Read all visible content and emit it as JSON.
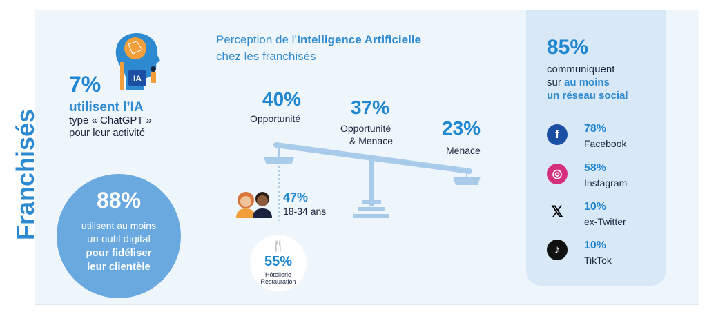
{
  "side_title": "Franchisés",
  "ia_block": {
    "percent": "7%",
    "line1": "utilisent l’IA",
    "line2": "type « ChatGPT »",
    "line3": "pour leur activité",
    "icon_label": "IA"
  },
  "digital_block": {
    "percent": "88%",
    "line1": "utilisent au moins",
    "line2": "un outil digital",
    "line3": "pour fidéliser",
    "line4": "leur clientèle"
  },
  "perception": {
    "title_prefix": "Perception de l’",
    "title_bold": "Intelligence Artificielle",
    "title_line2": "chez les franchisés",
    "opportunite_percent": "40%",
    "opportunite_label": "Opportunité",
    "mixed_percent": "37%",
    "mixed_label1": "Opportunité",
    "mixed_label2": "& Menace",
    "menace_percent": "23%",
    "menace_label": "Menace",
    "young_percent": "47%",
    "young_label": "18-34 ans",
    "hotel_percent": "55%",
    "hotel_label1": "Hôtellerie",
    "hotel_label2": "Restauration",
    "hotel_icon": "🍴"
  },
  "social": {
    "percent": "85%",
    "line1": "communiquent",
    "line2_prefix": "sur ",
    "line2_bold": "au moins",
    "line3": "un réseau social",
    "networks": [
      {
        "percent": "78%",
        "name": "Facebook",
        "icon": "f",
        "color": "#1b4fa3"
      },
      {
        "percent": "58%",
        "name": "Instagram",
        "icon": "◎",
        "color": "#d62f7e"
      },
      {
        "percent": "10%",
        "name": "ex-Twitter",
        "icon": "𝕏",
        "color": "#000000"
      },
      {
        "percent": "10%",
        "name": "TikTok",
        "icon": "♪",
        "color": "#111111"
      }
    ]
  },
  "colors": {
    "accent": "#1f86d1",
    "panel": "#eef5fb",
    "circle": "#6aa9df",
    "text": "#1b2540"
  }
}
